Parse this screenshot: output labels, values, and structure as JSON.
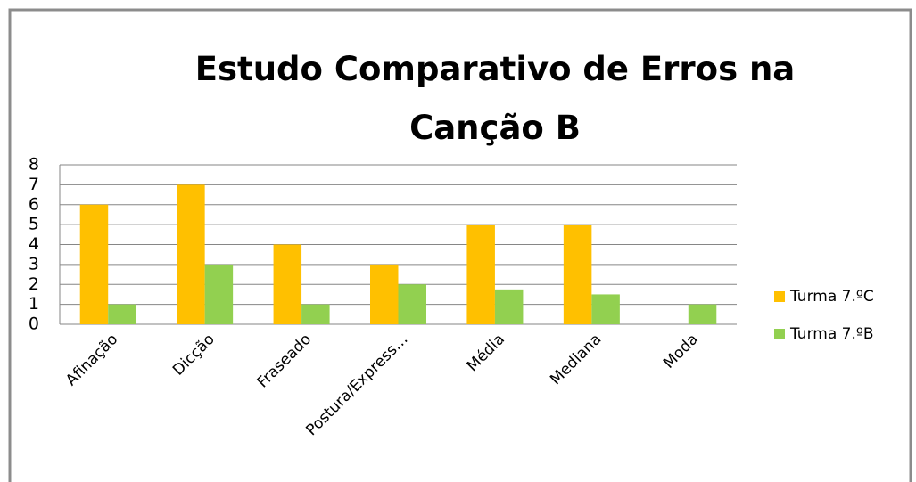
{
  "chart_data": {
    "type": "bar",
    "title": "Estudo Comparativo de Erros na Canção B",
    "categories": [
      "Afinação",
      "Dicção",
      "Fraseado",
      "Postura/Express…",
      "Média",
      "Mediana",
      "Moda"
    ],
    "series": [
      {
        "name": "Turma 7.ºC",
        "color": "#ffc000",
        "values": [
          6,
          7,
          4,
          3,
          5,
          5,
          0
        ]
      },
      {
        "name": "Turma 7.ºB",
        "color": "#92d050",
        "values": [
          1,
          3,
          1,
          2,
          1.75,
          1.5,
          1
        ]
      }
    ],
    "ylim": [
      0,
      8
    ],
    "yticks": [
      0,
      1,
      2,
      3,
      4,
      5,
      6,
      7,
      8
    ],
    "grid": true,
    "legend": "right"
  }
}
